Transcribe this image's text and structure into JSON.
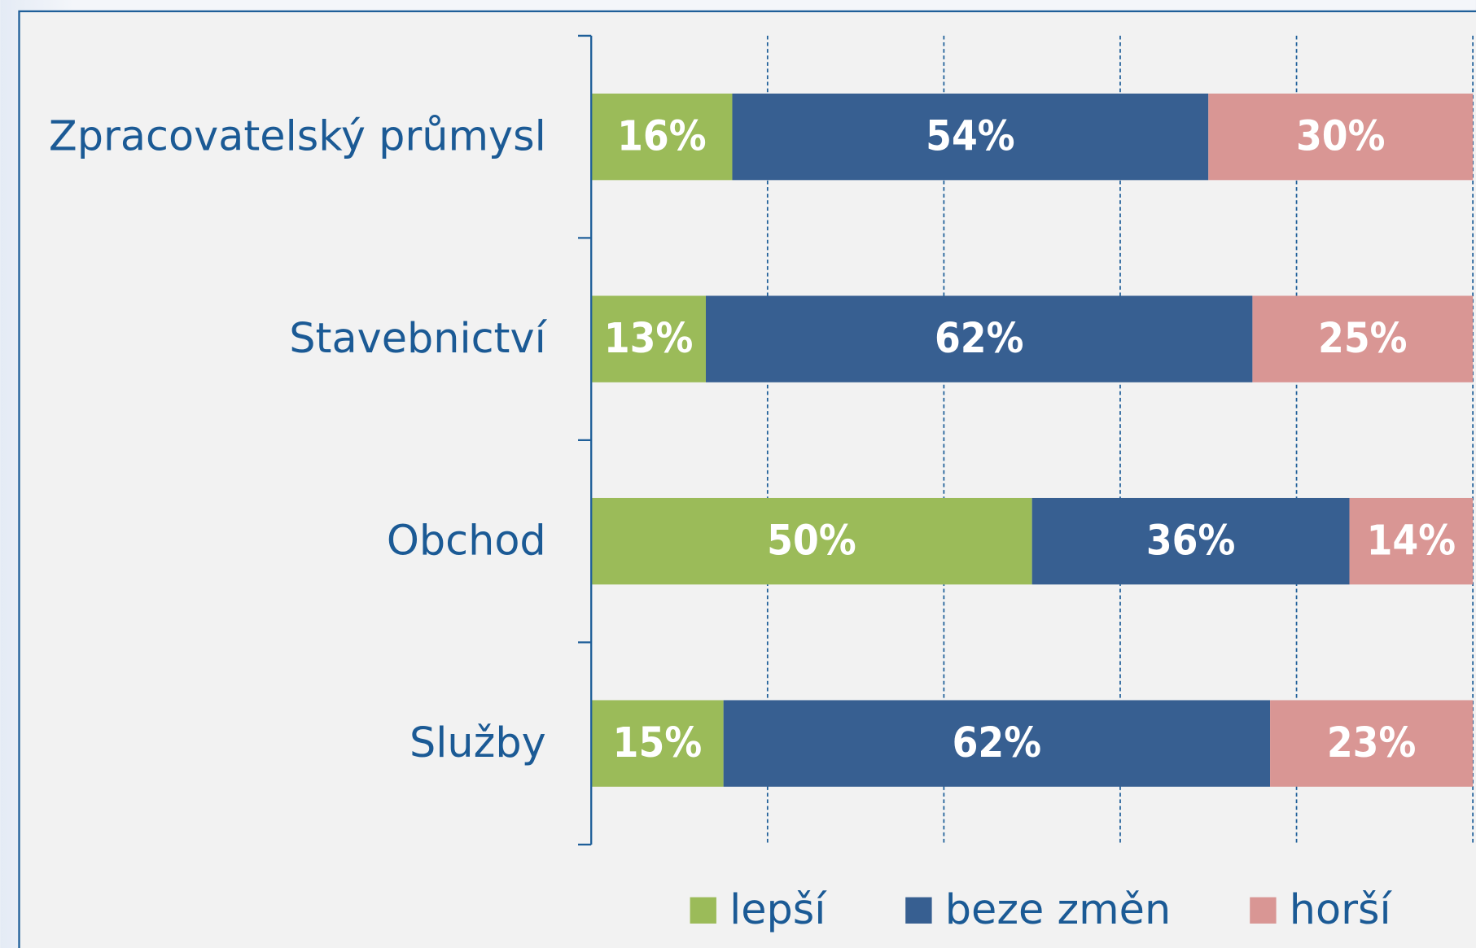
{
  "chart_data": {
    "type": "stacked-barh",
    "categories": [
      "Zpracovatelský průmysl",
      "Stavebnictví",
      "Obchod",
      "Služby"
    ],
    "series": [
      {
        "name": "lepší",
        "color": "#9bbb59",
        "values": [
          16,
          13,
          50,
          15
        ],
        "value_labels": [
          "16%",
          "13%",
          "50%",
          "15%"
        ]
      },
      {
        "name": "beze změn",
        "color": "#375f91",
        "values": [
          54,
          62,
          36,
          62
        ],
        "value_labels": [
          "54%",
          "62%",
          "36%",
          "62%"
        ]
      },
      {
        "name": "horší",
        "color": "#d99694",
        "values": [
          30,
          25,
          14,
          23
        ],
        "value_labels": [
          "30%",
          "25%",
          "14%",
          "23%"
        ]
      }
    ],
    "xlim": [
      0,
      100
    ],
    "xticks": [
      0,
      20,
      40,
      60,
      80,
      100
    ],
    "grid": true,
    "legend": "bottom"
  }
}
